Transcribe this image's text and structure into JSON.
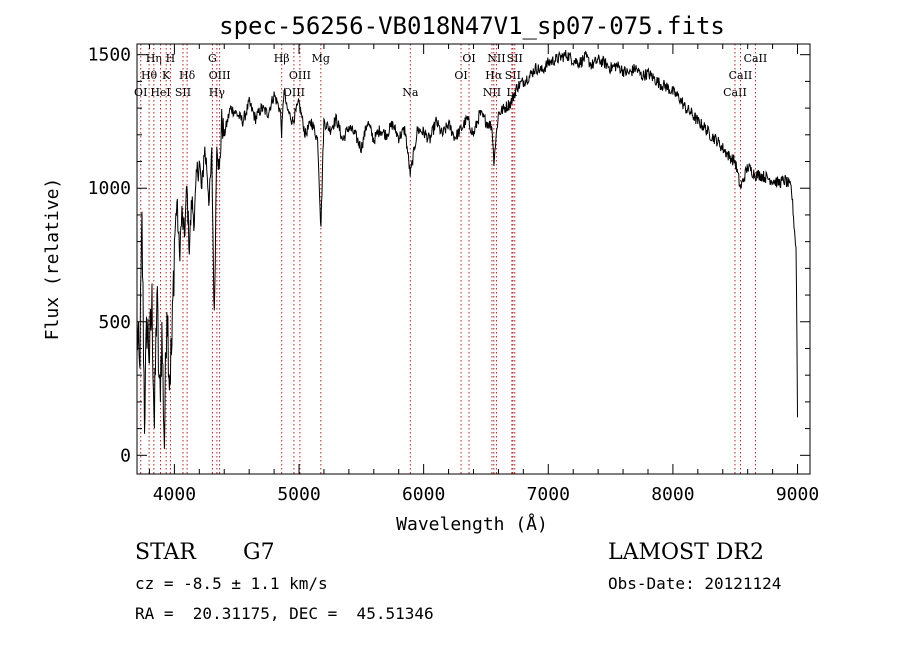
{
  "chart_data": {
    "type": "line",
    "title": "spec-56256-VB018N47V1_sp07-075.fits",
    "xlabel": "Wavelength (Å)",
    "ylabel": "Flux (relative)",
    "xlim": [
      3700,
      9100
    ],
    "ylim": [
      -70,
      1540
    ],
    "xticks": [
      4000,
      5000,
      6000,
      7000,
      8000,
      9000
    ],
    "xtick_labels": [
      "4000",
      "5000",
      "6000",
      "7000",
      "8000",
      "9000"
    ],
    "yticks": [
      0,
      500,
      1000,
      1500
    ],
    "ytick_labels": [
      "0",
      "500",
      "1000",
      "1500"
    ],
    "grid": false,
    "series": [
      {
        "name": "flux",
        "x": [
          3700,
          3720,
          3740,
          3760,
          3780,
          3800,
          3820,
          3840,
          3860,
          3880,
          3900,
          3920,
          3940,
          3960,
          3980,
          4000,
          4020,
          4040,
          4060,
          4080,
          4100,
          4120,
          4140,
          4160,
          4180,
          4200,
          4220,
          4240,
          4260,
          4280,
          4300,
          4320,
          4340,
          4360,
          4380,
          4400,
          4450,
          4500,
          4550,
          4600,
          4650,
          4700,
          4750,
          4800,
          4850,
          4861,
          4880,
          4900,
          4950,
          5000,
          5050,
          5100,
          5150,
          5175,
          5200,
          5250,
          5300,
          5350,
          5400,
          5450,
          5500,
          5550,
          5600,
          5650,
          5700,
          5750,
          5800,
          5850,
          5893,
          5950,
          6000,
          6050,
          6100,
          6150,
          6200,
          6250,
          6300,
          6350,
          6400,
          6450,
          6500,
          6550,
          6563,
          6600,
          6650,
          6700,
          6750,
          6800,
          6850,
          6900,
          6950,
          7000,
          7050,
          7100,
          7150,
          7200,
          7250,
          7300,
          7350,
          7400,
          7450,
          7500,
          7550,
          7600,
          7650,
          7700,
          7750,
          7800,
          7850,
          7900,
          7950,
          8000,
          8050,
          8100,
          8150,
          8200,
          8250,
          8300,
          8350,
          8400,
          8450,
          8500,
          8542,
          8600,
          8662,
          8700,
          8750,
          8800,
          8850,
          8900,
          8950,
          8990,
          9000
        ],
        "values": [
          480,
          300,
          850,
          150,
          500,
          380,
          560,
          100,
          620,
          200,
          450,
          50,
          600,
          300,
          400,
          800,
          950,
          750,
          900,
          820,
          1000,
          780,
          950,
          880,
          1050,
          1100,
          980,
          1150,
          1080,
          950,
          1120,
          500,
          1200,
          1050,
          1250,
          1200,
          1300,
          1280,
          1250,
          1320,
          1260,
          1300,
          1280,
          1350,
          1290,
          1200,
          1380,
          1300,
          1250,
          1320,
          1200,
          1250,
          1180,
          850,
          1250,
          1220,
          1260,
          1180,
          1230,
          1200,
          1150,
          1250,
          1180,
          1220,
          1200,
          1240,
          1190,
          1220,
          1050,
          1220,
          1210,
          1180,
          1250,
          1200,
          1240,
          1190,
          1220,
          1260,
          1200,
          1280,
          1250,
          1230,
          1100,
          1280,
          1300,
          1320,
          1380,
          1400,
          1420,
          1450,
          1440,
          1470,
          1480,
          1490,
          1500,
          1480,
          1470,
          1490,
          1460,
          1480,
          1470,
          1450,
          1460,
          1440,
          1430,
          1450,
          1420,
          1430,
          1410,
          1390,
          1380,
          1360,
          1340,
          1300,
          1280,
          1250,
          1230,
          1200,
          1180,
          1150,
          1120,
          1100,
          1000,
          1080,
          1050,
          1050,
          1040,
          1030,
          1020,
          1030,
          1000,
          760,
          150
        ]
      }
    ],
    "line_markers": [
      {
        "label": "OI",
        "wavelength": 3730,
        "row": 3
      },
      {
        "label": "Hθ",
        "wavelength": 3797,
        "row": 2
      },
      {
        "label": "Hη",
        "wavelength": 3835,
        "row": 1
      },
      {
        "label": "HeI",
        "wavelength": 3889,
        "row": 3
      },
      {
        "label": "K",
        "wavelength": 3934,
        "row": 2
      },
      {
        "label": "H",
        "wavelength": 3968,
        "row": 1
      },
      {
        "label": "SII",
        "wavelength": 4069,
        "row": 3
      },
      {
        "label": "Hδ",
        "wavelength": 4102,
        "row": 2
      },
      {
        "label": "G",
        "wavelength": 4305,
        "row": 1
      },
      {
        "label": "Hγ",
        "wavelength": 4341,
        "row": 3
      },
      {
        "label": "OIII",
        "wavelength": 4363,
        "row": 2
      },
      {
        "label": "Hβ",
        "wavelength": 4861,
        "row": 1
      },
      {
        "label": "OIII",
        "wavelength": 4959,
        "row": 3
      },
      {
        "label": "OIII",
        "wavelength": 5007,
        "row": 2
      },
      {
        "label": "Mg",
        "wavelength": 5175,
        "row": 1
      },
      {
        "label": "Na",
        "wavelength": 5893,
        "row": 3
      },
      {
        "label": "OI",
        "wavelength": 6300,
        "row": 2
      },
      {
        "label": "OI",
        "wavelength": 6364,
        "row": 1
      },
      {
        "label": "NII",
        "wavelength": 6548,
        "row": 3
      },
      {
        "label": "Hα",
        "wavelength": 6563,
        "row": 2
      },
      {
        "label": "NII",
        "wavelength": 6584,
        "row": 1
      },
      {
        "label": "Li",
        "wavelength": 6708,
        "row": 3
      },
      {
        "label": "SII",
        "wavelength": 6716,
        "row": 2
      },
      {
        "label": "SII",
        "wavelength": 6731,
        "row": 1
      },
      {
        "label": "CaII",
        "wavelength": 8498,
        "row": 3
      },
      {
        "label": "CaII",
        "wavelength": 8542,
        "row": 2
      },
      {
        "label": "CaII",
        "wavelength": 8662,
        "row": 1
      }
    ]
  },
  "footer": {
    "object_class": "STAR",
    "subclass": "G7",
    "redshift": "cz = -8.5 ± 1.1 km/s",
    "coords": "RA =  20.31175, DEC =  45.51346",
    "survey": "LAMOST DR2",
    "obs_date": "Obs-Date: 20121124"
  }
}
